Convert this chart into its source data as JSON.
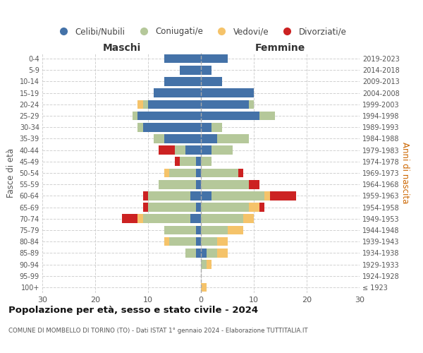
{
  "age_groups": [
    "100+",
    "95-99",
    "90-94",
    "85-89",
    "80-84",
    "75-79",
    "70-74",
    "65-69",
    "60-64",
    "55-59",
    "50-54",
    "45-49",
    "40-44",
    "35-39",
    "30-34",
    "25-29",
    "20-24",
    "15-19",
    "10-14",
    "5-9",
    "0-4"
  ],
  "birth_years": [
    "≤ 1923",
    "1924-1928",
    "1929-1933",
    "1934-1938",
    "1939-1943",
    "1944-1948",
    "1949-1953",
    "1954-1958",
    "1959-1963",
    "1964-1968",
    "1969-1973",
    "1974-1978",
    "1979-1983",
    "1984-1988",
    "1989-1993",
    "1994-1998",
    "1999-2003",
    "2004-2008",
    "2009-2013",
    "2014-2018",
    "2019-2023"
  ],
  "males": {
    "celibi": [
      0,
      0,
      0,
      1,
      1,
      1,
      2,
      1,
      2,
      1,
      1,
      1,
      3,
      7,
      11,
      12,
      10,
      9,
      7,
      4,
      7
    ],
    "coniugati": [
      0,
      0,
      0,
      2,
      5,
      6,
      9,
      9,
      8,
      7,
      5,
      3,
      2,
      2,
      1,
      1,
      1,
      0,
      0,
      0,
      0
    ],
    "vedovi": [
      0,
      0,
      0,
      0,
      1,
      0,
      1,
      0,
      0,
      0,
      1,
      0,
      0,
      0,
      0,
      0,
      1,
      0,
      0,
      0,
      0
    ],
    "divorziati": [
      0,
      0,
      0,
      0,
      0,
      0,
      3,
      1,
      1,
      0,
      0,
      1,
      3,
      0,
      0,
      0,
      0,
      0,
      0,
      0,
      0
    ]
  },
  "females": {
    "nubili": [
      0,
      0,
      0,
      1,
      0,
      0,
      0,
      0,
      2,
      0,
      0,
      0,
      2,
      3,
      2,
      11,
      9,
      10,
      4,
      2,
      5
    ],
    "coniugate": [
      0,
      0,
      1,
      2,
      3,
      5,
      8,
      9,
      10,
      9,
      7,
      2,
      4,
      6,
      2,
      3,
      1,
      0,
      0,
      0,
      0
    ],
    "vedove": [
      1,
      0,
      1,
      2,
      2,
      3,
      2,
      2,
      1,
      0,
      0,
      0,
      0,
      0,
      0,
      0,
      0,
      0,
      0,
      0,
      0
    ],
    "divorziate": [
      0,
      0,
      0,
      0,
      0,
      0,
      0,
      1,
      5,
      2,
      1,
      0,
      0,
      0,
      0,
      0,
      0,
      0,
      0,
      0,
      0
    ]
  },
  "colors": {
    "celibi_nubili": "#4472a8",
    "coniugati": "#b5c89a",
    "vedovi": "#f5c36a",
    "divorziati": "#cc2222"
  },
  "xlim": 30,
  "title": "Popolazione per età, sesso e stato civile - 2024",
  "subtitle": "COMUNE DI MOMBELLO DI TORINO (TO) - Dati ISTAT 1° gennaio 2024 - Elaborazione TUTTITALIA.IT",
  "xlabel_left": "Maschi",
  "xlabel_right": "Femmine",
  "ylabel_left": "Fasce di età",
  "ylabel_right": "Anni di nascita",
  "legend_labels": [
    "Celibi/Nubili",
    "Coniugati/e",
    "Vedovi/e",
    "Divorziati/e"
  ],
  "bg_color": "#ffffff",
  "grid_color": "#cccccc"
}
